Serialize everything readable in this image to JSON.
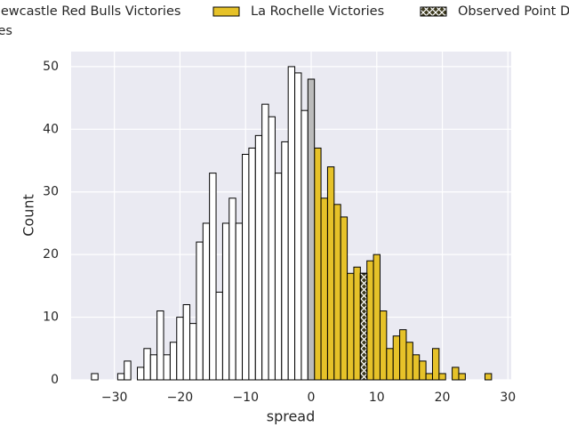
{
  "chart_data": {
    "type": "histogram",
    "xlabel": "spread",
    "ylabel": "Count",
    "series": [
      {
        "name": "Newcastle Red Bulls Victories",
        "color": "#ffffff",
        "bins": [
          -33.5,
          -32.5,
          -31.5,
          -30.5,
          -29.5,
          -28.5,
          -27.5,
          -26.5,
          -25.5,
          -24.5,
          -23.5,
          -22.5,
          -21.5,
          -20.5,
          -19.5,
          -18.5,
          -17.5,
          -16.5,
          -15.5,
          -14.5,
          -13.5,
          -12.5,
          -11.5,
          -10.5,
          -9.5,
          -8.5,
          -7.5,
          -6.5,
          -5.5,
          -4.5,
          -3.5,
          -2.5,
          -1.5,
          -0.5
        ],
        "values": [
          1,
          0,
          0,
          0,
          1,
          3,
          0,
          2,
          5,
          4,
          11,
          4,
          6,
          10,
          12,
          9,
          22,
          25,
          33,
          14,
          25,
          29,
          25,
          36,
          37,
          39,
          44,
          42,
          33,
          38,
          50,
          49,
          43
        ]
      },
      {
        "name": "La Rochelle Victories",
        "color": "#e6c229",
        "bins": [
          0.5,
          1.5,
          2.5,
          3.5,
          4.5,
          5.5,
          6.5,
          7.5,
          8.5,
          9.5,
          10.5,
          11.5,
          12.5,
          13.5,
          14.5,
          15.5,
          16.5,
          17.5,
          18.5,
          19.5,
          20.5,
          21.5,
          22.5,
          23.5,
          24.5,
          25.5,
          26.5,
          27.5
        ],
        "values": [
          37,
          29,
          34,
          28,
          26,
          17,
          18,
          17,
          19,
          20,
          11,
          5,
          7,
          8,
          6,
          4,
          3,
          1,
          5,
          1,
          0,
          2,
          1,
          0,
          0,
          0,
          1
        ]
      },
      {
        "name": "Observed Point Difference",
        "color": "#3d3a1e",
        "hatch": true,
        "bins": [
          7.5,
          8.5
        ],
        "values": [
          17
        ]
      },
      {
        "name": "Ties",
        "color": "#bbbbbb",
        "bins": [
          -0.5,
          0.5
        ],
        "values": [
          48
        ]
      }
    ],
    "xlim": [
      -36.6,
      30.5
    ],
    "xticks": [
      {
        "value": -30,
        "label": "−30"
      },
      {
        "value": -20,
        "label": "−20"
      },
      {
        "value": -10,
        "label": "−10"
      },
      0,
      10,
      20,
      30
    ],
    "ylim": [
      0,
      52.4
    ],
    "yticks": [
      0,
      10,
      20,
      30,
      40,
      50
    ],
    "grid": true
  }
}
